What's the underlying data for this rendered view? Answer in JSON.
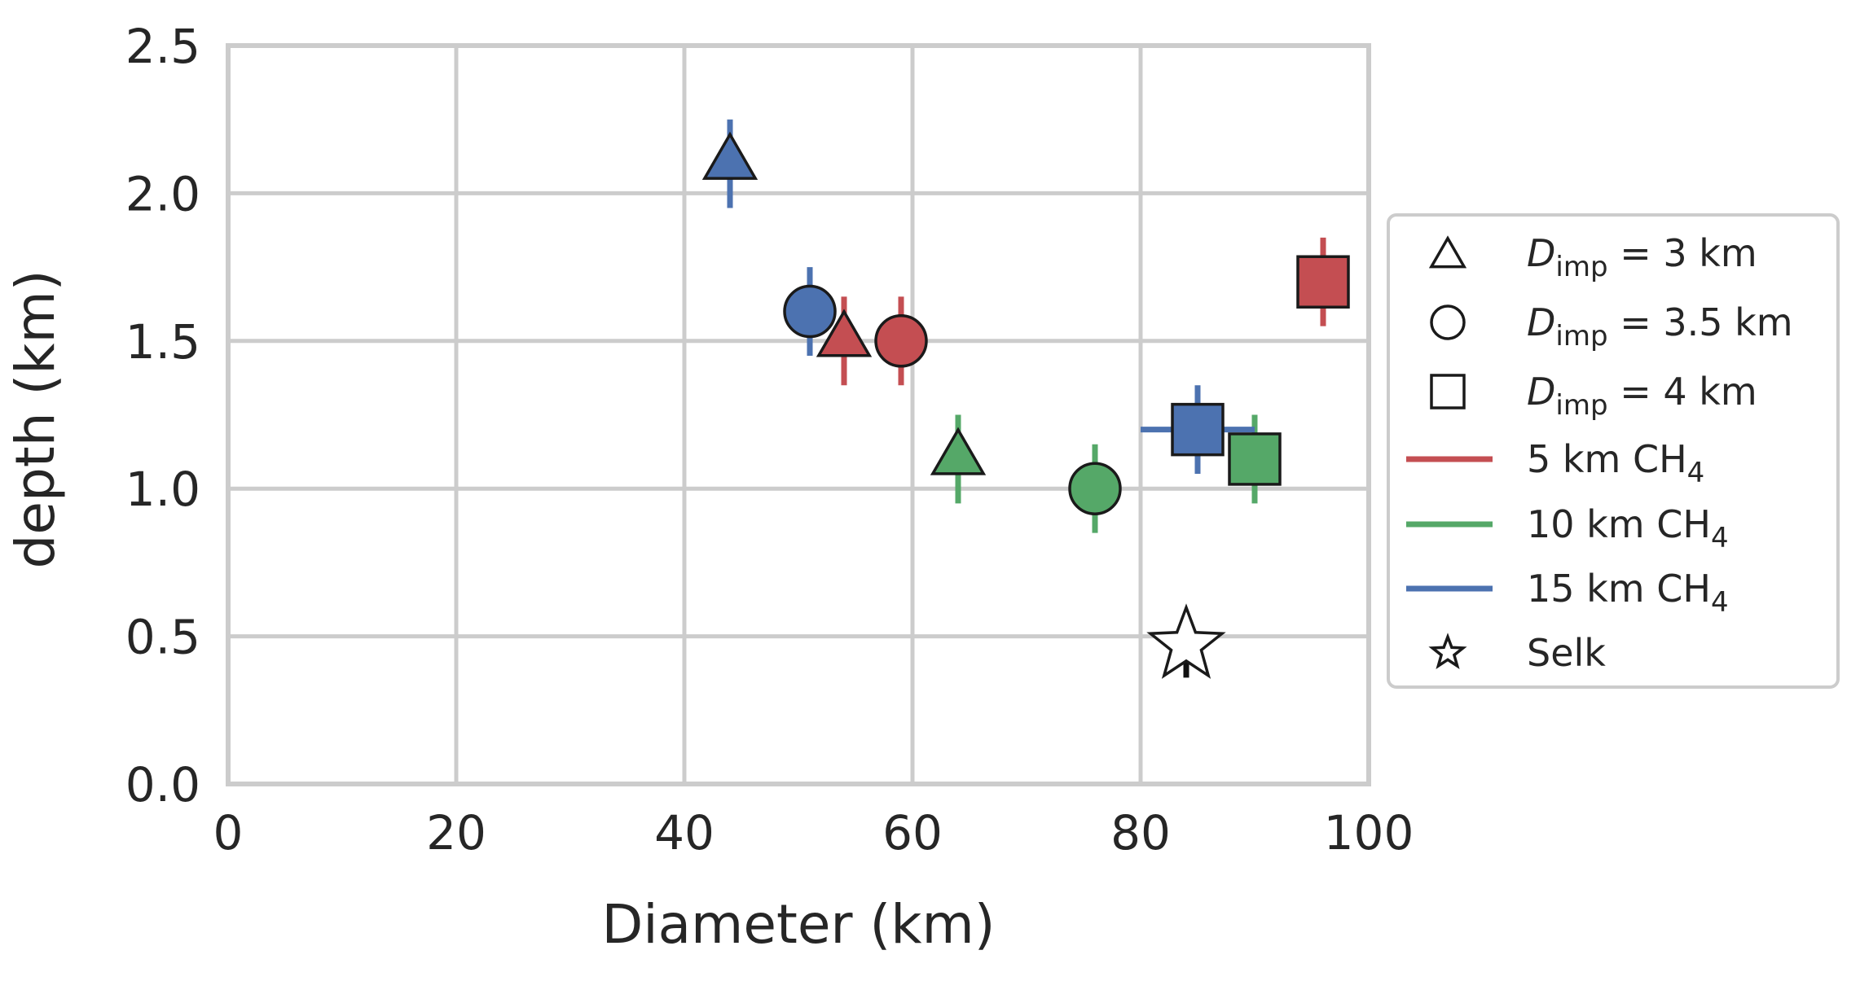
{
  "chart_data": {
    "type": "scatter",
    "title": "",
    "xlabel": "Diameter (km)",
    "ylabel": "depth (km)",
    "xlim": [
      0,
      100
    ],
    "ylim": [
      0,
      2.5
    ],
    "xticks": [
      0,
      20,
      40,
      60,
      80,
      100
    ],
    "xtick_labels": [
      "0",
      "20",
      "40",
      "60",
      "80",
      "100"
    ],
    "yticks": [
      0,
      0.5,
      1.0,
      1.5,
      2.0,
      2.5
    ],
    "ytick_labels": [
      "0.0",
      "0.5",
      "1.0",
      "1.5",
      "2.0",
      "2.5"
    ],
    "grid": true,
    "legend_position": "right",
    "colors": {
      "red": "#c44e52",
      "green": "#55a868",
      "blue": "#4c72b0",
      "grid": "#cccccc",
      "edge": "#1a1a1a"
    },
    "series": [
      {
        "name": "5 km CH4",
        "color": "red",
        "points": [
          {
            "marker": "triangle",
            "x": 54,
            "y": 1.5,
            "yerr": 0.15
          },
          {
            "marker": "circle",
            "x": 59,
            "y": 1.5,
            "yerr": 0.15
          },
          {
            "marker": "square",
            "x": 96,
            "y": 1.7,
            "yerr": 0.15
          }
        ]
      },
      {
        "name": "10 km CH4",
        "color": "green",
        "points": [
          {
            "marker": "triangle",
            "x": 64,
            "y": 1.1,
            "yerr": 0.15
          },
          {
            "marker": "circle",
            "x": 76,
            "y": 1.0,
            "yerr": 0.15
          },
          {
            "marker": "square",
            "x": 90,
            "y": 1.1,
            "yerr": 0.15
          }
        ]
      },
      {
        "name": "15 km CH4",
        "color": "blue",
        "points": [
          {
            "marker": "triangle",
            "x": 44,
            "y": 2.1,
            "yerr": 0.15
          },
          {
            "marker": "circle",
            "x": 51,
            "y": 1.6,
            "yerr": 0.15
          },
          {
            "marker": "square",
            "x": 85,
            "y": 1.2,
            "yerr": 0.15,
            "xerr": 5
          }
        ]
      }
    ],
    "reference": {
      "name": "Selk",
      "marker": "star",
      "x": 84,
      "y": 0.47,
      "yerr": 0.11
    },
    "legend": [
      {
        "symbol": "triangle",
        "label_main": "D",
        "label_sub": "imp",
        "label_rest": " = 3 km"
      },
      {
        "symbol": "circle",
        "label_main": "D",
        "label_sub": "imp",
        "label_rest": " = 3.5 km"
      },
      {
        "symbol": "square",
        "label_main": "D",
        "label_sub": "imp",
        "label_rest": " = 4 km"
      },
      {
        "symbol": "line",
        "color": "red",
        "label_main": "5 km CH",
        "label_sub": "4",
        "label_rest": ""
      },
      {
        "symbol": "line",
        "color": "green",
        "label_main": "10 km CH",
        "label_sub": "4",
        "label_rest": ""
      },
      {
        "symbol": "line",
        "color": "blue",
        "label_main": "15 km CH",
        "label_sub": "4",
        "label_rest": ""
      },
      {
        "symbol": "star",
        "label_main": "Selk",
        "label_sub": "",
        "label_rest": ""
      }
    ]
  }
}
